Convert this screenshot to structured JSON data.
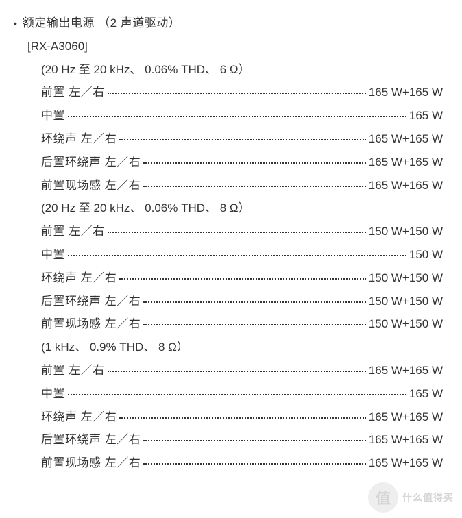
{
  "heading": "额定输出电源 （2 声道驱动）",
  "model": "[RX-A3060]",
  "groups": [
    {
      "condition": "(20 Hz 至 20 kHz、 0.06% THD、 6 Ω）",
      "rows": [
        {
          "label": "前置 左／右",
          "value": "165 W+165 W"
        },
        {
          "label": "中置",
          "value": "165 W"
        },
        {
          "label": "环绕声 左／右",
          "value": "165 W+165 W"
        },
        {
          "label": "后置环绕声 左／右",
          "value": "165 W+165 W"
        },
        {
          "label": "前置现场感 左／右",
          "value": "165 W+165 W"
        }
      ]
    },
    {
      "condition": "(20 Hz 至 20 kHz、 0.06% THD、 8 Ω）",
      "rows": [
        {
          "label": "前置 左／右",
          "value": "150 W+150 W"
        },
        {
          "label": "中置",
          "value": "150 W"
        },
        {
          "label": "环绕声 左／右",
          "value": "150 W+150 W"
        },
        {
          "label": "后置环绕声 左／右",
          "value": "150 W+150 W"
        },
        {
          "label": "前置现场感 左／右",
          "value": "150 W+150 W"
        }
      ]
    },
    {
      "condition": "(1 kHz、 0.9% THD、 8 Ω）",
      "rows": [
        {
          "label": "前置 左／右",
          "value": "165 W+165 W"
        },
        {
          "label": "中置",
          "value": "165 W"
        },
        {
          "label": "环绕声 左／右",
          "value": "165 W+165 W"
        },
        {
          "label": "后置环绕声 左／右",
          "value": "165 W+165 W"
        },
        {
          "label": "前置现场感 左／右",
          "value": "165 W+165 W"
        }
      ]
    }
  ],
  "watermark": {
    "icon": "值",
    "text": "什么值得买"
  }
}
